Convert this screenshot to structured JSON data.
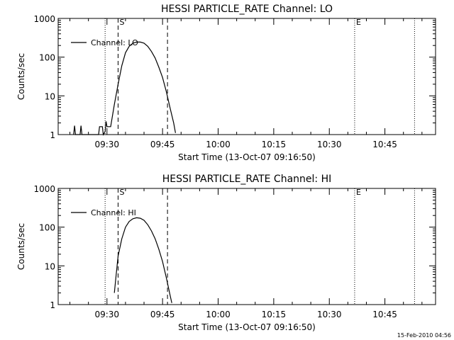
{
  "footer_stamp": "15-Feb-2010 04:56",
  "chart_data": [
    {
      "type": "line",
      "title": "HESSI PARTICLE_RATE Channel: LO",
      "xlabel": "Start Time (13-Oct-07 09:16:50)",
      "ylabel": "Counts/sec",
      "yscale": "log",
      "ylim": [
        1,
        1000
      ],
      "xlim": [
        "09:16:50",
        "10:58:40"
      ],
      "x_ticks": [
        "09:30",
        "09:45",
        "10:00",
        "10:15",
        "10:30",
        "10:45"
      ],
      "y_ticks": [
        "1",
        "10",
        "100",
        "1000"
      ],
      "legend": {
        "entries": [
          "Channel: LO"
        ],
        "placement": "upper-left"
      },
      "markers": [
        {
          "label": "",
          "time": "09:29:30",
          "style": "dotted"
        },
        {
          "label": "S",
          "time": "09:33:00",
          "style": "dashed"
        },
        {
          "label": "",
          "time": "09:46:20",
          "style": "dashed"
        },
        {
          "label": "E",
          "time": "10:36:50",
          "style": "dotted"
        },
        {
          "label": "",
          "time": "10:53:00",
          "style": "dotted"
        }
      ],
      "series": [
        {
          "name": "Channel: LO",
          "points": [
            [
              "09:21:00",
              1
            ],
            [
              "09:21:15",
              1.7
            ],
            [
              "09:21:30",
              1
            ],
            [
              "09:22:45",
              1
            ],
            [
              "09:23:00",
              1.7
            ],
            [
              "09:23:15",
              1
            ],
            [
              "09:27:45",
              1
            ],
            [
              "09:28:00",
              1.6
            ],
            [
              "09:28:45",
              1.6
            ],
            [
              "09:29:00",
              1
            ],
            [
              "09:29:30",
              1.2
            ],
            [
              "09:29:45",
              2.2
            ],
            [
              "09:30:00",
              1.6
            ],
            [
              "09:31:00",
              1.6
            ],
            [
              "09:32:00",
              6
            ],
            [
              "09:33:00",
              20
            ],
            [
              "09:34:00",
              60
            ],
            [
              "09:35:00",
              130
            ],
            [
              "09:36:00",
              190
            ],
            [
              "09:37:00",
              230
            ],
            [
              "09:38:00",
              245
            ],
            [
              "09:39:00",
              245
            ],
            [
              "09:40:00",
              230
            ],
            [
              "09:41:00",
              190
            ],
            [
              "09:42:00",
              140
            ],
            [
              "09:43:00",
              95
            ],
            [
              "09:44:00",
              55
            ],
            [
              "09:45:00",
              30
            ],
            [
              "09:46:00",
              13
            ],
            [
              "09:47:00",
              5
            ],
            [
              "09:48:00",
              2
            ],
            [
              "09:48:30",
              1.1
            ]
          ]
        }
      ]
    },
    {
      "type": "line",
      "title": "HESSI PARTICLE_RATE Channel: HI",
      "xlabel": "Start Time (13-Oct-07 09:16:50)",
      "ylabel": "Counts/sec",
      "yscale": "log",
      "ylim": [
        1,
        1000
      ],
      "xlim": [
        "09:16:50",
        "10:58:40"
      ],
      "x_ticks": [
        "09:30",
        "09:45",
        "10:00",
        "10:15",
        "10:30",
        "10:45"
      ],
      "y_ticks": [
        "1",
        "10",
        "100",
        "1000"
      ],
      "legend": {
        "entries": [
          "Channel: HI"
        ],
        "placement": "upper-left"
      },
      "markers": [
        {
          "label": "",
          "time": "09:29:30",
          "style": "dotted"
        },
        {
          "label": "S",
          "time": "09:33:00",
          "style": "dashed"
        },
        {
          "label": "",
          "time": "09:46:20",
          "style": "dashed"
        },
        {
          "label": "E",
          "time": "10:36:50",
          "style": "dotted"
        },
        {
          "label": "",
          "time": "10:53:00",
          "style": "dotted"
        }
      ],
      "series": [
        {
          "name": "Channel: HI",
          "points": [
            [
              "09:32:00",
              2
            ],
            [
              "09:32:30",
              6
            ],
            [
              "09:33:00",
              18
            ],
            [
              "09:34:00",
              50
            ],
            [
              "09:35:00",
              100
            ],
            [
              "09:36:00",
              140
            ],
            [
              "09:37:00",
              165
            ],
            [
              "09:38:00",
              175
            ],
            [
              "09:39:00",
              170
            ],
            [
              "09:40:00",
              150
            ],
            [
              "09:41:00",
              115
            ],
            [
              "09:42:00",
              80
            ],
            [
              "09:43:00",
              50
            ],
            [
              "09:44:00",
              27
            ],
            [
              "09:45:00",
              13
            ],
            [
              "09:46:00",
              5
            ],
            [
              "09:47:00",
              1.8
            ],
            [
              "09:47:30",
              1.1
            ]
          ]
        }
      ]
    }
  ]
}
